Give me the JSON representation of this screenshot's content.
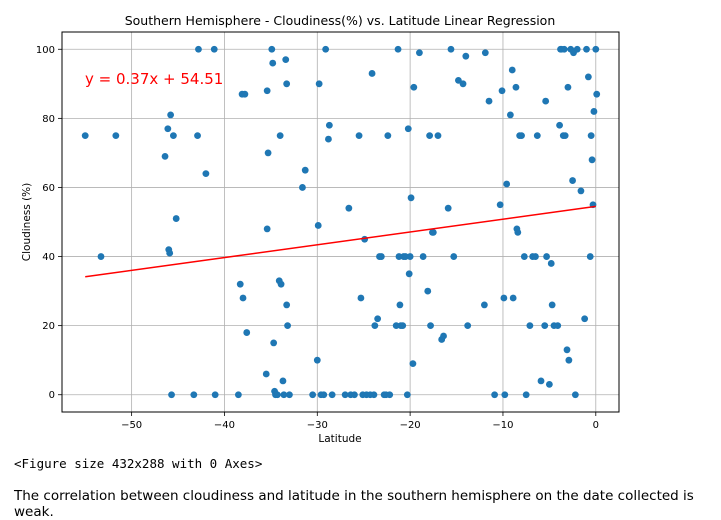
{
  "chart_data": {
    "type": "scatter",
    "title": "Southern Hemisphere - Cloudiness(%) vs. Latitude Linear Regression",
    "xlabel": "Latitude",
    "ylabel": "Cloudiness (%)",
    "xlim": [
      -57.5,
      2.5
    ],
    "ylim": [
      -5,
      105
    ],
    "xticks": [
      -50,
      -40,
      -30,
      -20,
      -10,
      0
    ],
    "yticks": [
      0,
      20,
      40,
      60,
      80,
      100
    ],
    "grid": true,
    "point_color": "#1f77b4",
    "line_color": "#ff0000",
    "regression": {
      "slope": 0.37,
      "intercept": 54.51,
      "x_range": [
        -55,
        0
      ],
      "equation": "y = 0.37x + 54.51"
    },
    "points": [
      [
        -55,
        75
      ],
      [
        -53.3,
        40
      ],
      [
        -51.7,
        75
      ],
      [
        -46.4,
        69
      ],
      [
        -46.1,
        77
      ],
      [
        -46,
        42
      ],
      [
        -45.9,
        41
      ],
      [
        -45.8,
        81
      ],
      [
        -45.7,
        0
      ],
      [
        -45.5,
        75
      ],
      [
        -45.2,
        51
      ],
      [
        -43.3,
        0
      ],
      [
        -42.9,
        75
      ],
      [
        -42.8,
        100
      ],
      [
        -42,
        64
      ],
      [
        -41.1,
        100
      ],
      [
        -41,
        0
      ],
      [
        -38.5,
        0
      ],
      [
        -38.3,
        32
      ],
      [
        -38.1,
        87
      ],
      [
        -38,
        28
      ],
      [
        -37.8,
        87
      ],
      [
        -37.6,
        18
      ],
      [
        -35.5,
        6
      ],
      [
        -35.4,
        88
      ],
      [
        -35.3,
        70
      ],
      [
        -35.4,
        48
      ],
      [
        -34.9,
        100
      ],
      [
        -34.8,
        96
      ],
      [
        -34.7,
        15
      ],
      [
        -34.6,
        1
      ],
      [
        -34.5,
        0
      ],
      [
        -34.3,
        0
      ],
      [
        -34.1,
        33
      ],
      [
        -34,
        75
      ],
      [
        -33.9,
        32
      ],
      [
        -33.7,
        4
      ],
      [
        -33.6,
        0
      ],
      [
        -33.4,
        97
      ],
      [
        -33.3,
        90
      ],
      [
        -33.3,
        26
      ],
      [
        -33.2,
        20
      ],
      [
        -33,
        0
      ],
      [
        -31.6,
        60
      ],
      [
        -31.3,
        65
      ],
      [
        -30.5,
        0
      ],
      [
        -30,
        10
      ],
      [
        -29.9,
        49
      ],
      [
        -29.8,
        90
      ],
      [
        -29.6,
        0
      ],
      [
        -29.3,
        0
      ],
      [
        -29.1,
        100
      ],
      [
        -28.8,
        74
      ],
      [
        -28.7,
        78
      ],
      [
        -28.4,
        0
      ],
      [
        -27,
        0
      ],
      [
        -26.6,
        54
      ],
      [
        -26.4,
        0
      ],
      [
        -26,
        0
      ],
      [
        -25.5,
        75
      ],
      [
        -25.3,
        28
      ],
      [
        -25.1,
        0
      ],
      [
        -24.9,
        45
      ],
      [
        -24.7,
        0
      ],
      [
        -24.3,
        0
      ],
      [
        -24.1,
        93
      ],
      [
        -23.9,
        0
      ],
      [
        -23.8,
        20
      ],
      [
        -23.5,
        22
      ],
      [
        -23.3,
        40
      ],
      [
        -23.1,
        40
      ],
      [
        -22.8,
        0
      ],
      [
        -22.6,
        0
      ],
      [
        -22.4,
        75
      ],
      [
        -22.2,
        0
      ],
      [
        -21.5,
        20
      ],
      [
        -21.3,
        100
      ],
      [
        -21.2,
        40
      ],
      [
        -21.1,
        26
      ],
      [
        -21,
        20
      ],
      [
        -20.8,
        20
      ],
      [
        -20.7,
        40
      ],
      [
        -20.5,
        40
      ],
      [
        -20.3,
        0
      ],
      [
        -20.2,
        77
      ],
      [
        -20.1,
        35
      ],
      [
        -20,
        40
      ],
      [
        -19.9,
        57
      ],
      [
        -19.7,
        9
      ],
      [
        -19.6,
        89
      ],
      [
        -19,
        99
      ],
      [
        -18.6,
        40
      ],
      [
        -18.1,
        30
      ],
      [
        -17.9,
        75
      ],
      [
        -17.8,
        20
      ],
      [
        -17.6,
        47
      ],
      [
        -17.5,
        47
      ],
      [
        -17,
        75
      ],
      [
        -16.6,
        16
      ],
      [
        -16.4,
        17
      ],
      [
        -15.9,
        54
      ],
      [
        -15.6,
        100
      ],
      [
        -15.3,
        40
      ],
      [
        -14.8,
        91
      ],
      [
        -14.3,
        90
      ],
      [
        -14,
        98
      ],
      [
        -13.8,
        20
      ],
      [
        -12,
        26
      ],
      [
        -11.9,
        99
      ],
      [
        -11.5,
        85
      ],
      [
        -10.9,
        0
      ],
      [
        -10.3,
        55
      ],
      [
        -10.1,
        88
      ],
      [
        -9.9,
        28
      ],
      [
        -9.8,
        0
      ],
      [
        -9.6,
        61
      ],
      [
        -9.2,
        81
      ],
      [
        -9,
        94
      ],
      [
        -8.9,
        28
      ],
      [
        -8.6,
        89
      ],
      [
        -8.5,
        48
      ],
      [
        -8.4,
        47
      ],
      [
        -8.2,
        75
      ],
      [
        -8,
        75
      ],
      [
        -7.7,
        40
      ],
      [
        -7.5,
        0
      ],
      [
        -7.1,
        20
      ],
      [
        -6.8,
        40
      ],
      [
        -6.5,
        40
      ],
      [
        -6.3,
        75
      ],
      [
        -5.9,
        4
      ],
      [
        -5.5,
        20
      ],
      [
        -5.4,
        85
      ],
      [
        -5.3,
        40
      ],
      [
        -5,
        3
      ],
      [
        -4.8,
        38
      ],
      [
        -4.7,
        26
      ],
      [
        -4.5,
        20
      ],
      [
        -4.1,
        20
      ],
      [
        -3.9,
        78
      ],
      [
        -3.8,
        100
      ],
      [
        -3.7,
        100
      ],
      [
        -3.5,
        75
      ],
      [
        -3.4,
        100
      ],
      [
        -3.3,
        75
      ],
      [
        -3.1,
        13
      ],
      [
        -3,
        89
      ],
      [
        -2.9,
        10
      ],
      [
        -2.7,
        100
      ],
      [
        -2.5,
        62
      ],
      [
        -2.4,
        99
      ],
      [
        -2.2,
        0
      ],
      [
        -2,
        100
      ],
      [
        -1.6,
        59
      ],
      [
        -1.2,
        22
      ],
      [
        -1,
        100
      ],
      [
        -0.8,
        92
      ],
      [
        -0.6,
        40
      ],
      [
        -0.5,
        75
      ],
      [
        -0.4,
        68
      ],
      [
        -0.3,
        55
      ],
      [
        -0.2,
        82
      ],
      [
        0.1,
        87
      ],
      [
        0,
        100
      ]
    ]
  },
  "notebook": {
    "figure_output": "<Figure size 432x288 with 0 Axes>",
    "caption": "The correlation between cloudiness and latitude in the southern hemisphere on the date collected is weak."
  }
}
